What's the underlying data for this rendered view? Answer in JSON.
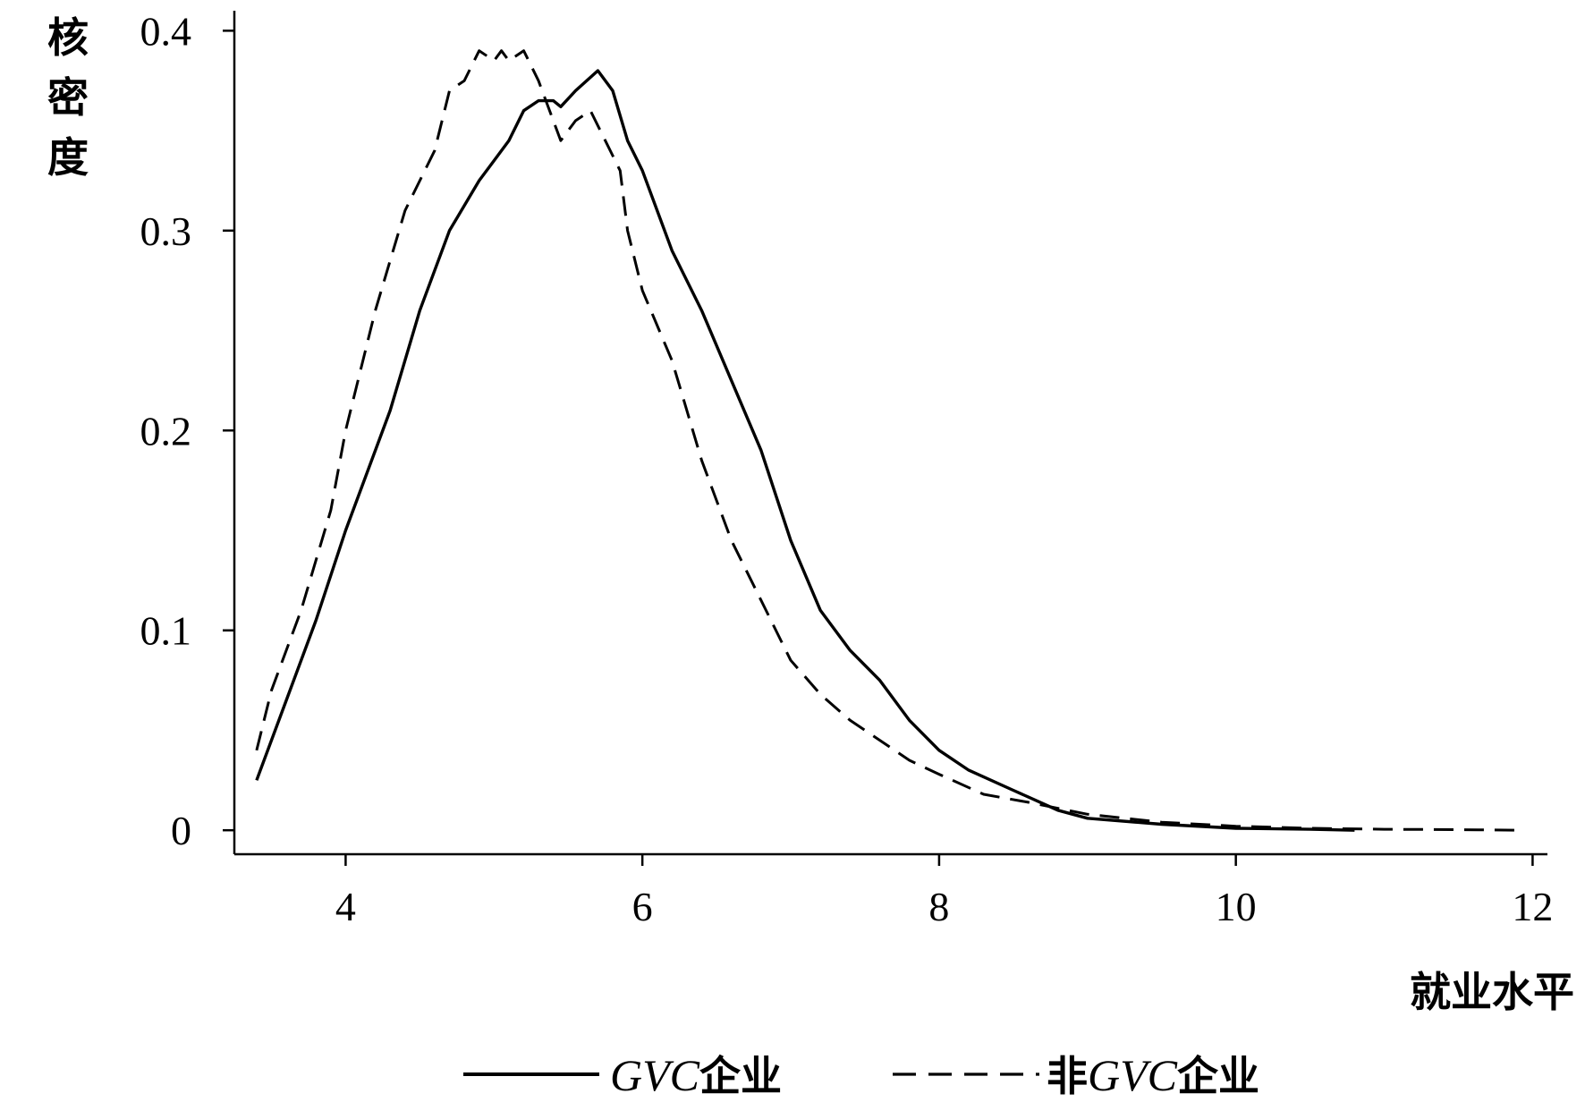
{
  "chart_data": {
    "type": "line",
    "title": "",
    "xlabel": "就业水平",
    "ylabel": "核密度",
    "xlim": [
      3.25,
      12.1
    ],
    "ylim": [
      -0.012,
      0.41
    ],
    "xticks": [
      "4",
      "6",
      "8",
      "10",
      "12"
    ],
    "yticks": [
      "0",
      "0.1",
      "0.2",
      "0.3",
      "0.4"
    ],
    "grid": false,
    "legend_position": "bottom-center",
    "series": [
      {
        "name": "GVC企业",
        "name_parts": {
          "latin": "GVC",
          "cjk": "企业"
        },
        "style": "solid",
        "color": "#000000",
        "x": [
          3.4,
          3.6,
          3.8,
          4.0,
          4.2,
          4.3,
          4.5,
          4.7,
          4.9,
          5.0,
          5.1,
          5.2,
          5.3,
          5.4,
          5.45,
          5.55,
          5.7,
          5.8,
          5.9,
          6.0,
          6.2,
          6.4,
          6.6,
          6.8,
          7.0,
          7.2,
          7.4,
          7.6,
          7.8,
          8.0,
          8.2,
          8.5,
          8.8,
          9.0,
          9.5,
          10.0,
          10.5,
          10.8
        ],
        "y": [
          0.025,
          0.065,
          0.105,
          0.15,
          0.19,
          0.21,
          0.26,
          0.3,
          0.325,
          0.335,
          0.345,
          0.36,
          0.365,
          0.365,
          0.362,
          0.37,
          0.38,
          0.37,
          0.345,
          0.33,
          0.29,
          0.26,
          0.225,
          0.19,
          0.145,
          0.11,
          0.09,
          0.075,
          0.055,
          0.04,
          0.03,
          0.02,
          0.01,
          0.006,
          0.003,
          0.001,
          0.0005,
          0.0
        ]
      },
      {
        "name": "非GVC企业",
        "name_parts": {
          "prefix": "非",
          "latin": "GVC",
          "cjk": "企业"
        },
        "style": "dashed",
        "color": "#000000",
        "x": [
          3.4,
          3.5,
          3.7,
          3.9,
          4.0,
          4.2,
          4.4,
          4.6,
          4.7,
          4.8,
          4.9,
          5.0,
          5.05,
          5.1,
          5.2,
          5.3,
          5.4,
          5.45,
          5.55,
          5.65,
          5.75,
          5.85,
          5.9,
          6.0,
          6.2,
          6.4,
          6.6,
          6.8,
          7.0,
          7.2,
          7.4,
          7.6,
          7.8,
          8.0,
          8.3,
          8.6,
          9.0,
          9.5,
          10.0,
          10.5,
          11.0,
          11.5,
          11.9
        ],
        "y": [
          0.04,
          0.07,
          0.11,
          0.16,
          0.2,
          0.26,
          0.31,
          0.34,
          0.37,
          0.375,
          0.39,
          0.385,
          0.39,
          0.385,
          0.39,
          0.375,
          0.355,
          0.345,
          0.355,
          0.36,
          0.345,
          0.33,
          0.3,
          0.27,
          0.235,
          0.185,
          0.145,
          0.115,
          0.085,
          0.068,
          0.055,
          0.045,
          0.035,
          0.028,
          0.018,
          0.014,
          0.008,
          0.004,
          0.002,
          0.001,
          0.0005,
          0.0003,
          0.0
        ]
      }
    ]
  }
}
